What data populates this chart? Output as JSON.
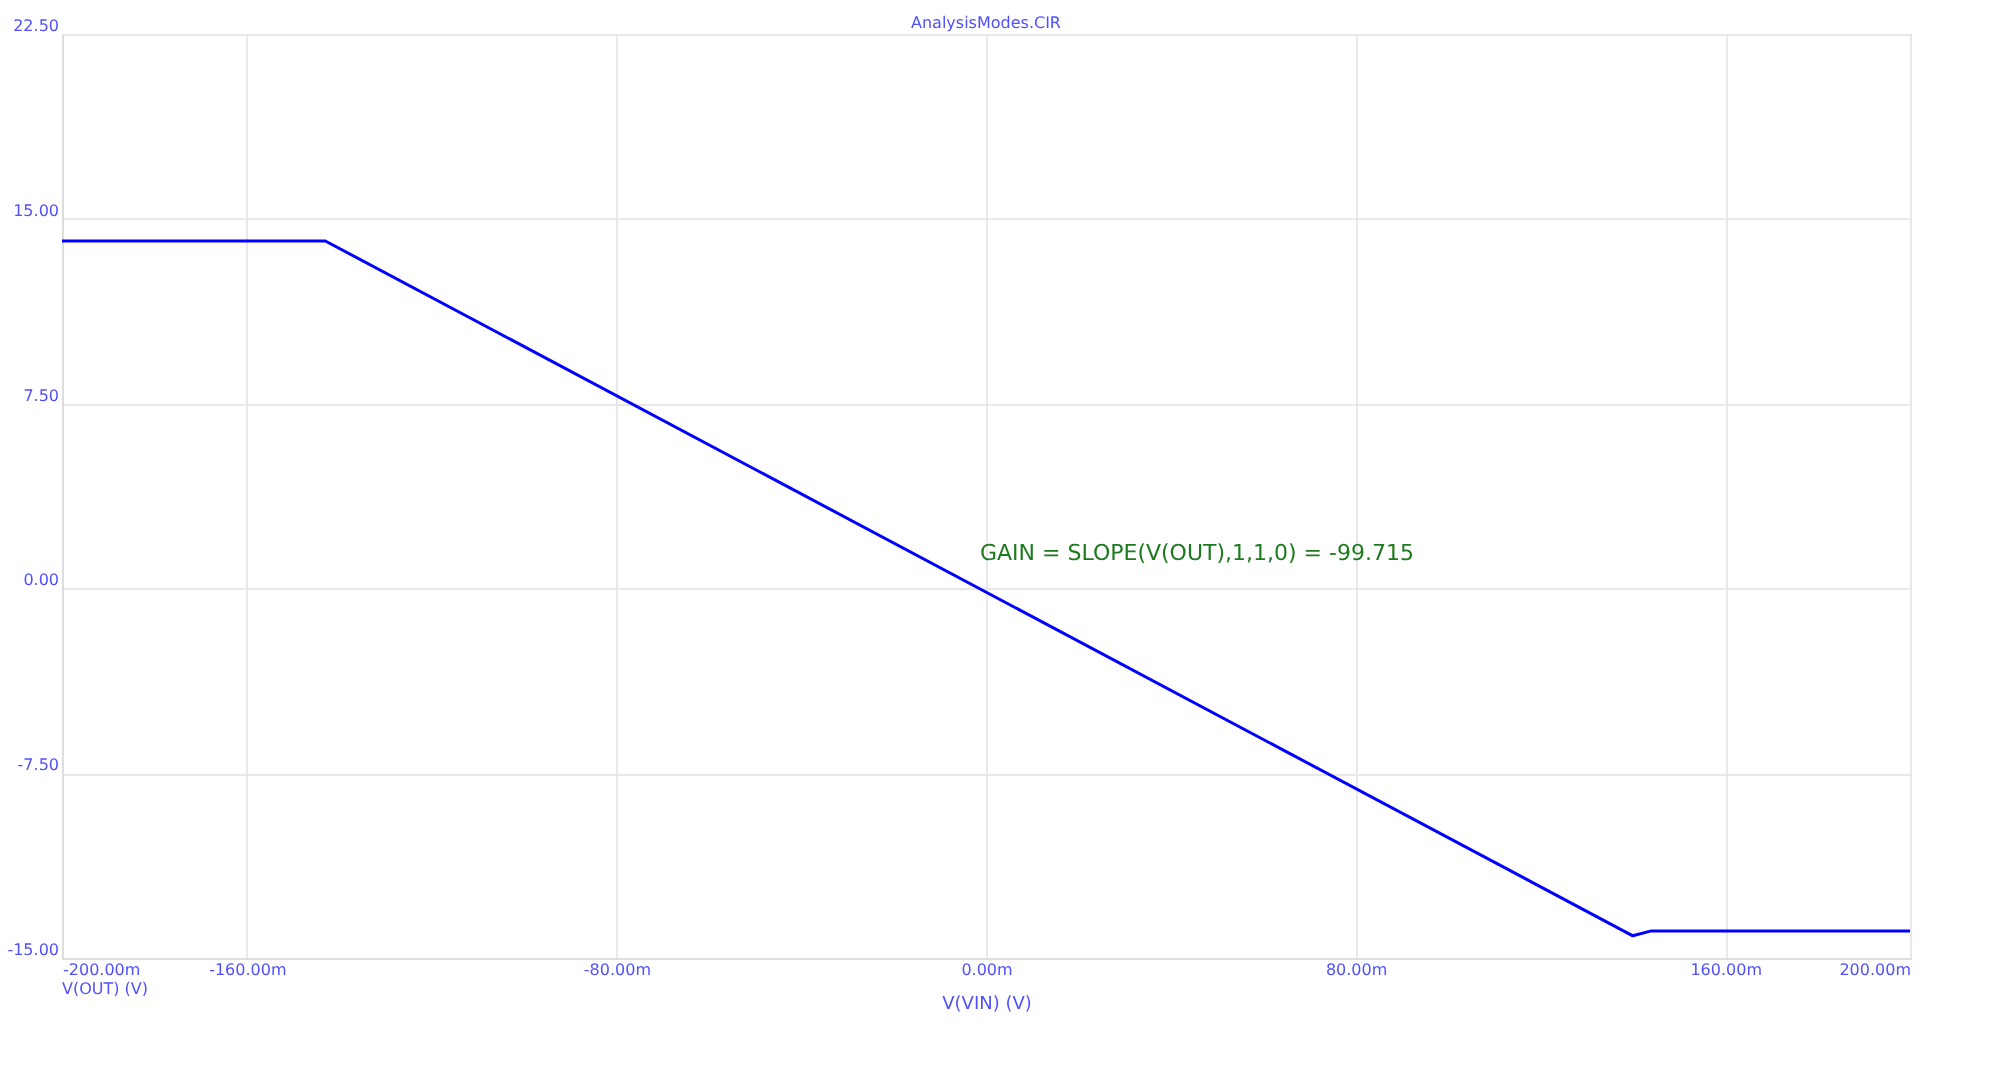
{
  "chart_data": {
    "type": "line",
    "title": "AnalysisModes.CIR",
    "xlabel": "V(VIN) (V)",
    "x": [
      -200,
      -143,
      140,
      144,
      200
    ],
    "series": [
      {
        "color": "#0000ff",
        "values": [
          14.1,
          14.1,
          -14.1,
          -13.9,
          -13.9
        ]
      }
    ],
    "xlim": [
      -200,
      200
    ],
    "xticks": [
      {
        "value": -200,
        "label": "-200.00m"
      },
      {
        "value": -160,
        "label": "-160.00m"
      },
      {
        "value": -80,
        "label": "-80.00m"
      },
      {
        "value": 0,
        "label": "0.00m"
      },
      {
        "value": 80,
        "label": "80.00m"
      },
      {
        "value": 160,
        "label": "160.00m"
      },
      {
        "value": 200,
        "label": "200.00m"
      }
    ],
    "ylim": [
      -15,
      22.5
    ],
    "yticks": [
      {
        "value": -15,
        "label": "-15.00"
      },
      {
        "value": -7.5,
        "label": "-7.50"
      },
      {
        "value": 0,
        "label": "0.00"
      },
      {
        "value": 7.5,
        "label": "7.50"
      },
      {
        "value": 15,
        "label": "15.00"
      },
      {
        "value": 22.5,
        "label": "22.50"
      }
    ],
    "annotations": [
      "GAIN = SLOPE(V(OUT),1,1,0) = -99.715",
      "V(OUT) (V)"
    ],
    "grid": true,
    "marker": "none",
    "line_style": "solid"
  }
}
